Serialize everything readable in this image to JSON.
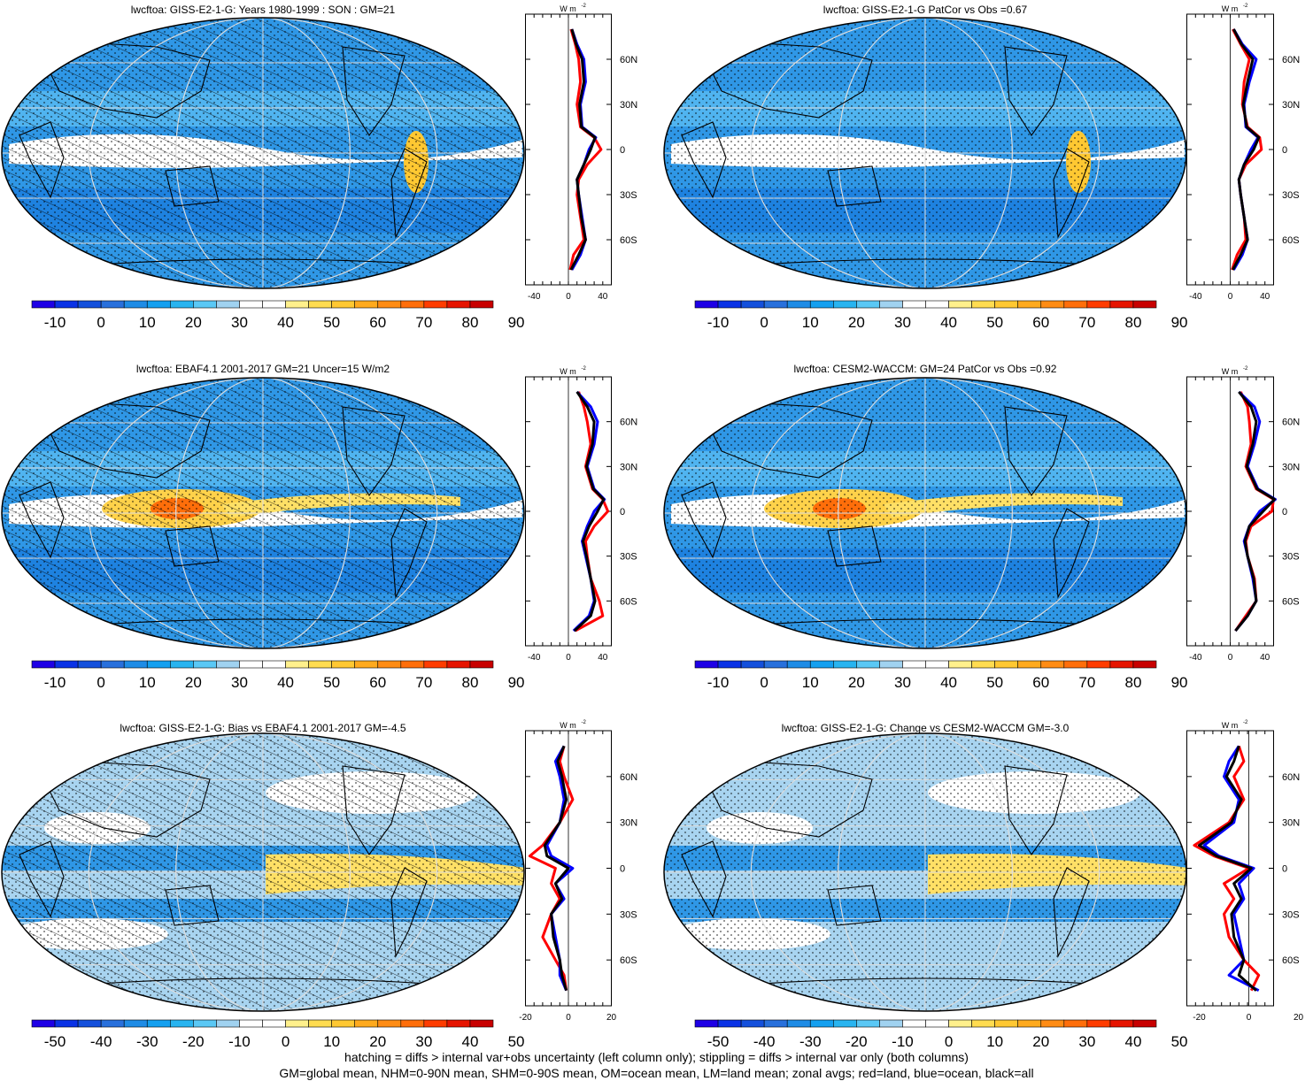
{
  "footer": {
    "line1": "hatching = diffs > internal var+obs uncertainty (left column only); stippling = diffs > internal var only (both columns)",
    "line2": "GM=global mean, NHM=0-90N mean, SHM=0-90S mean, OM=ocean mean, LM=land mean; zonal avgs; red=land, blue=ocean, black=all"
  },
  "colors": {
    "red": "#ff0000",
    "blue": "#0000ff",
    "black": "#000000",
    "scale": [
      "#1e00e6",
      "#0a32e6",
      "#1450dc",
      "#2870dc",
      "#1e8ce6",
      "#14a0f0",
      "#28b4f0",
      "#5ac8f5",
      "#a0d2f0",
      "#ffffff",
      "#ffffff",
      "#fff08c",
      "#ffdc50",
      "#ffc832",
      "#ffaa1e",
      "#ff8c14",
      "#ff6e0a",
      "#ff3c00",
      "#e61400",
      "#c80000"
    ]
  },
  "chart_data": [
    {
      "type": "heatmap",
      "title": "lwcftoa: GISS-E2-1-G: Years 1980-1999 : SON : GM=21",
      "colorbar": {
        "labels": [
          "-10",
          "0",
          "10",
          "20",
          "30",
          "40",
          "50",
          "60",
          "70",
          "80",
          "90"
        ]
      },
      "zonal": {
        "type": "line",
        "xticks": [
          "-40",
          "0",
          "40"
        ],
        "yticks": [
          "60N",
          "30N",
          "0",
          "30S",
          "60S"
        ],
        "xlim": [
          -50,
          50
        ],
        "unit": "W m-2",
        "lat": [
          80,
          70,
          60,
          45,
          30,
          15,
          8,
          0,
          -10,
          -20,
          -30,
          -45,
          -60,
          -70,
          -80
        ],
        "series": [
          {
            "name": "red",
            "values": [
              3,
              8,
              12,
              14,
              10,
              14,
              30,
              38,
              22,
              12,
              10,
              14,
              18,
              6,
              2
            ]
          },
          {
            "name": "blue",
            "values": [
              4,
              10,
              18,
              20,
              14,
              16,
              32,
              24,
              18,
              10,
              12,
              16,
              20,
              14,
              4
            ]
          },
          {
            "name": "black",
            "values": [
              4,
              9,
              16,
              18,
              13,
              15,
              31,
              26,
              18,
              10,
              12,
              15,
              20,
              12,
              3
            ]
          }
        ]
      }
    },
    {
      "type": "heatmap",
      "title": "lwcftoa: GISS-E2-1-G PatCor vs Obs =0.67",
      "colorbar": {
        "labels": [
          "-10",
          "0",
          "10",
          "20",
          "30",
          "40",
          "50",
          "60",
          "70",
          "80",
          "90"
        ]
      },
      "zonal": {
        "type": "line",
        "xticks": [
          "-40",
          "0",
          "40"
        ],
        "yticks": [
          "60N",
          "30N",
          "0",
          "30S",
          "60S"
        ],
        "xlim": [
          -50,
          50
        ],
        "unit": "W m-2",
        "lat": [
          80,
          70,
          60,
          45,
          30,
          15,
          8,
          0,
          -10,
          -20,
          -30,
          -45,
          -60,
          -70,
          -80
        ],
        "series": [
          {
            "name": "red",
            "values": [
              3,
              12,
              22,
              16,
              14,
              20,
              34,
              36,
              18,
              10,
              12,
              16,
              18,
              8,
              2
            ]
          },
          {
            "name": "blue",
            "values": [
              4,
              14,
              30,
              22,
              16,
              18,
              32,
              24,
              16,
              10,
              12,
              16,
              20,
              14,
              4
            ]
          },
          {
            "name": "black",
            "values": [
              4,
              13,
              26,
              20,
              15,
              19,
              33,
              27,
              16,
              10,
              12,
              16,
              20,
              12,
              3
            ]
          }
        ]
      }
    },
    {
      "type": "heatmap",
      "title": "lwcftoa: EBAF4.1 2001-2017 GM=21 Uncer=15 W/m2",
      "colorbar": {
        "labels": [
          "-10",
          "0",
          "10",
          "20",
          "30",
          "40",
          "50",
          "60",
          "70",
          "80",
          "90"
        ]
      },
      "zonal": {
        "type": "line",
        "xticks": [
          "-40",
          "0",
          "40"
        ],
        "yticks": [
          "60N",
          "30N",
          "0",
          "30S",
          "60S"
        ],
        "xlim": [
          -50,
          50
        ],
        "unit": "W m-2",
        "lat": [
          80,
          70,
          60,
          45,
          30,
          15,
          8,
          0,
          -10,
          -20,
          -30,
          -45,
          -60,
          -70,
          -80
        ],
        "series": [
          {
            "name": "red",
            "values": [
              12,
              18,
              22,
              26,
              20,
              28,
              40,
              46,
              30,
              20,
              22,
              26,
              36,
              40,
              8
            ]
          },
          {
            "name": "blue",
            "values": [
              10,
              26,
              34,
              30,
              22,
              30,
              42,
              30,
              22,
              16,
              20,
              26,
              30,
              24,
              6
            ]
          },
          {
            "name": "black",
            "values": [
              10,
              22,
              30,
              28,
              21,
              29,
              41,
              34,
              24,
              17,
              21,
              26,
              31,
              26,
              7
            ]
          }
        ]
      }
    },
    {
      "type": "heatmap",
      "title": "lwcftoa: CESM2-WACCM: GM=24 PatCor vs Obs =0.92",
      "colorbar": {
        "labels": [
          "-10",
          "0",
          "10",
          "20",
          "30",
          "40",
          "50",
          "60",
          "70",
          "80",
          "90"
        ]
      },
      "zonal": {
        "type": "line",
        "xticks": [
          "-40",
          "0",
          "40"
        ],
        "yticks": [
          "60N",
          "30N",
          "0",
          "30S",
          "60S"
        ],
        "xlim": [
          -50,
          50
        ],
        "unit": "W m-2",
        "lat": [
          80,
          70,
          60,
          45,
          30,
          15,
          8,
          0,
          -10,
          -20,
          -30,
          -45,
          -60,
          -70,
          -80
        ],
        "series": [
          {
            "name": "red",
            "values": [
              12,
              20,
              22,
              24,
              18,
              30,
              50,
              48,
              24,
              18,
              20,
              28,
              30,
              18,
              6
            ]
          },
          {
            "name": "blue",
            "values": [
              10,
              28,
              34,
              28,
              20,
              32,
              52,
              34,
              22,
              16,
              20,
              26,
              30,
              20,
              6
            ]
          },
          {
            "name": "black",
            "values": [
              10,
              24,
              30,
              26,
              19,
              31,
              51,
              38,
              22,
              17,
              20,
              27,
              30,
              20,
              6
            ]
          }
        ]
      }
    },
    {
      "type": "heatmap",
      "title": "lwcftoa: GISS-E2-1-G: Bias vs EBAF4.1 2001-2017  GM=-4.5",
      "colorbar": {
        "labels": [
          "-50",
          "-40",
          "-30",
          "-20",
          "-10",
          "0",
          "10",
          "20",
          "30",
          "40",
          "50"
        ]
      },
      "zonal": {
        "type": "line",
        "xticks": [
          "-20",
          "0",
          "20"
        ],
        "yticks": [
          "60N",
          "30N",
          "0",
          "30S",
          "60S"
        ],
        "xlim": [
          -20,
          20
        ],
        "unit": "W m-2",
        "lat": [
          80,
          70,
          60,
          45,
          30,
          15,
          8,
          0,
          -10,
          -20,
          -30,
          -45,
          -60,
          -70,
          -80
        ],
        "series": [
          {
            "name": "red",
            "values": [
              -2,
              -4,
              -2,
              2,
              -4,
              -12,
              -18,
              -6,
              -8,
              -4,
              -8,
              -12,
              -6,
              -2,
              -1
            ]
          },
          {
            "name": "blue",
            "values": [
              -2,
              -6,
              -4,
              -2,
              -4,
              -10,
              -8,
              2,
              -6,
              -2,
              -8,
              -6,
              -4,
              -4,
              -1
            ]
          },
          {
            "name": "black",
            "values": [
              -2,
              -5,
              -3,
              -1,
              -4,
              -11,
              -10,
              0,
              -6,
              -3,
              -8,
              -7,
              -4,
              -3,
              -1
            ]
          }
        ]
      }
    },
    {
      "type": "heatmap",
      "title": "lwcftoa: GISS-E2-1-G: Change vs CESM2-WACCM GM=-3.0",
      "colorbar": {
        "labels": [
          "-50",
          "-40",
          "-30",
          "-20",
          "-10",
          "0",
          "10",
          "20",
          "30",
          "40",
          "50"
        ]
      },
      "zonal": {
        "type": "line",
        "xticks": [
          "-20",
          "0",
          "20"
        ],
        "yticks": [
          "60N",
          "30N",
          "0",
          "30S",
          "60S"
        ],
        "xlim": [
          -25,
          10
        ],
        "unit": "W m-2",
        "lat": [
          80,
          70,
          60,
          45,
          30,
          15,
          8,
          0,
          -10,
          -20,
          -30,
          -45,
          -60,
          -70,
          -80
        ],
        "series": [
          {
            "name": "red",
            "values": [
              -4,
              -2,
              -6,
              -2,
              -8,
              -22,
              -14,
              0,
              -10,
              -6,
              -10,
              -8,
              -2,
              4,
              1
            ]
          },
          {
            "name": "blue",
            "values": [
              -4,
              -8,
              -10,
              -4,
              -6,
              -18,
              -12,
              2,
              -4,
              -2,
              -6,
              -4,
              -2,
              -8,
              4
            ]
          },
          {
            "name": "black",
            "values": [
              -4,
              -6,
              -9,
              -3,
              -7,
              -20,
              -13,
              1,
              -6,
              -3,
              -7,
              -6,
              -2,
              -4,
              3
            ]
          }
        ]
      }
    }
  ]
}
